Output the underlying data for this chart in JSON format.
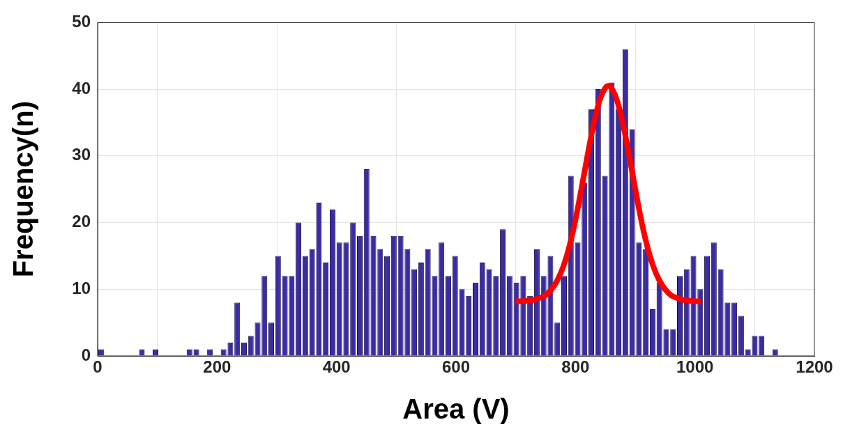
{
  "chart_data": {
    "type": "histogram",
    "xlabel": "Area (V)",
    "ylabel": "Frequency(n)",
    "xlim": [
      0,
      1200
    ],
    "ylim": [
      0,
      50
    ],
    "xticks": [
      0,
      200,
      400,
      600,
      800,
      1000,
      1200
    ],
    "yticks": [
      0,
      10,
      20,
      30,
      40,
      50
    ],
    "grid": true,
    "legend": false,
    "series": [
      {
        "color": "#3a2ba6",
        "bins": [
          0,
          11.4,
          22.8,
          34.2,
          45.6,
          57,
          68.4,
          79.8,
          91.2,
          102.6,
          114,
          125.4,
          136.8,
          148.2,
          159.6,
          171,
          182.4,
          193.8,
          205.2,
          216.6,
          228,
          239.4,
          250.8,
          262.2,
          273.6,
          285,
          296.4,
          307.8,
          319.2,
          330.6,
          342,
          353.4,
          364.8,
          376.2,
          387.6,
          399,
          410.4,
          421.8,
          433.2,
          444.6,
          456,
          467.4,
          478.8,
          490.2,
          501.6,
          513,
          524.4,
          535.8,
          547.2,
          558.6,
          570,
          581.4,
          592.8,
          604.2,
          615.6,
          627,
          638.4,
          649.8,
          661.2,
          672.6,
          684,
          695.4,
          706.8,
          718.2,
          729.6,
          741,
          752.4,
          763.8,
          775.2,
          786.6,
          798,
          809.4,
          820.8,
          832.2,
          843.6,
          855,
          866.4,
          877.8,
          889.2,
          900.6,
          912,
          923.4,
          934.8,
          946.2,
          957.6,
          969,
          980.4,
          991.8,
          1003.2,
          1014.6,
          1026,
          1037.4,
          1048.8,
          1060.2,
          1071.6,
          1083,
          1094.4,
          1105.8,
          1117.2,
          1128.6,
          1140
        ],
        "values": [
          1,
          0,
          0,
          0,
          0,
          0,
          1,
          0,
          1,
          0,
          0,
          0,
          0,
          1,
          1,
          0,
          1,
          0,
          1,
          2,
          8,
          2,
          3,
          5,
          12,
          5,
          15,
          12,
          12,
          20,
          15,
          16,
          23,
          14,
          22,
          17,
          17,
          20,
          18,
          28,
          18,
          16,
          15,
          18,
          18,
          16,
          13,
          14,
          16,
          12,
          17,
          12,
          15,
          10,
          9,
          11,
          14,
          13,
          12,
          19,
          12,
          11,
          12,
          9,
          16,
          12,
          15,
          5,
          12,
          27,
          17,
          26,
          37,
          40,
          27,
          41,
          37,
          46,
          34,
          17,
          16,
          7,
          11,
          4,
          4,
          12,
          13,
          15,
          10,
          15,
          17,
          13,
          8,
          8,
          6,
          1,
          3,
          3,
          0,
          1
        ]
      },
      {
        "type": "line",
        "color": "#ff0000",
        "line_style": "solid",
        "marker": "none",
        "x": [
          700,
          710,
          720,
          730,
          740,
          750,
          760,
          770,
          780,
          790,
          800,
          810,
          820,
          830,
          840,
          850,
          855,
          860,
          870,
          880,
          890,
          900,
          910,
          920,
          930,
          940,
          950,
          960,
          970,
          980,
          990,
          1000,
          1010
        ],
        "values": [
          8.2,
          8.2,
          8.3,
          8.4,
          8.7,
          9.1,
          10.0,
          11.4,
          13.5,
          16.5,
          20.4,
          25.1,
          30.0,
          34.6,
          38.2,
          40.2,
          40.5,
          40.2,
          38.2,
          34.6,
          30.0,
          25.1,
          20.4,
          16.5,
          13.5,
          11.4,
          10.0,
          9.1,
          8.7,
          8.4,
          8.3,
          8.2,
          8.2
        ]
      }
    ]
  }
}
